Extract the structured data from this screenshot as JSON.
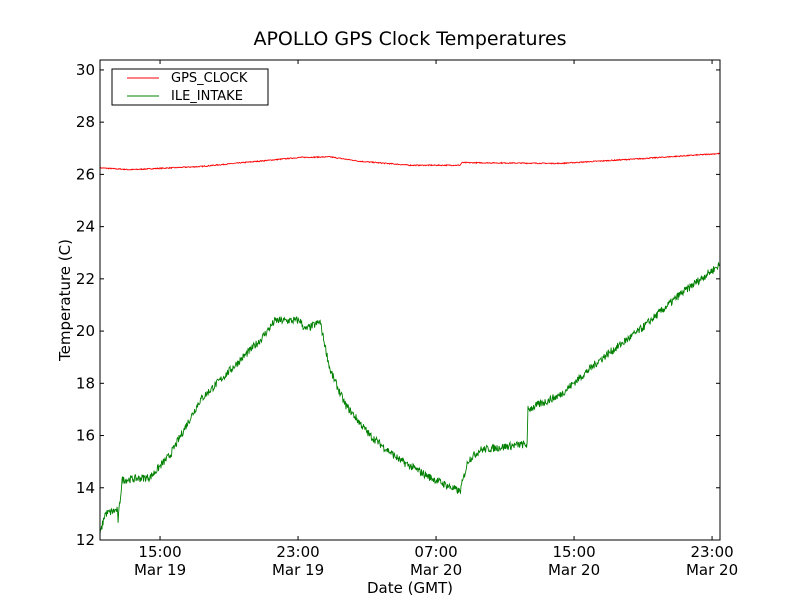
{
  "chart_data": {
    "type": "line",
    "title": "APOLLO GPS Clock Temperatures",
    "xlabel": "Date (GMT)",
    "ylabel": "Temperature (C)",
    "x_units": "hours since Mar 19 00:00 GMT",
    "xlim": [
      11.52,
      47.46
    ],
    "ylim": [
      12,
      30.38
    ],
    "grid": false,
    "legend_position": "top-left",
    "yticks": [
      12,
      14,
      16,
      18,
      20,
      22,
      24,
      26,
      28,
      30
    ],
    "xticks": [
      {
        "value": 15,
        "time": "15:00",
        "date": "Mar 19"
      },
      {
        "value": 23,
        "time": "23:00",
        "date": "Mar 19"
      },
      {
        "value": 31,
        "time": "07:00",
        "date": "Mar 20"
      },
      {
        "value": 39,
        "time": "15:00",
        "date": "Mar 20"
      },
      {
        "value": 47,
        "time": "23:00",
        "date": "Mar 20"
      }
    ],
    "series": [
      {
        "name": "GPS_CLOCK",
        "color": "#ff0000",
        "noise": 0.02,
        "x": [
          11.52,
          13.26,
          17.32,
          23.12,
          24.86,
          26.6,
          29.49,
          32.39,
          32.5,
          38.19,
          42.83,
          47.46
        ],
        "y": [
          26.25,
          26.18,
          26.3,
          26.65,
          26.67,
          26.5,
          26.35,
          26.35,
          26.45,
          26.42,
          26.6,
          26.8
        ]
      },
      {
        "name": "ILE_INTAKE",
        "color": "#008000",
        "noise": 0.15,
        "x": [
          11.52,
          11.81,
          12.51,
          12.57,
          12.8,
          14.42,
          15.58,
          17.32,
          19.06,
          20.8,
          21.67,
          23.12,
          23.41,
          24.28,
          24.86,
          25.72,
          27.17,
          28.91,
          30.65,
          32.39,
          32.86,
          33.55,
          35.87,
          36.28,
          36.33,
          38.19,
          40.51,
          42.83,
          45.14,
          47.46
        ],
        "y": [
          12.2,
          13.0,
          13.15,
          12.75,
          14.3,
          14.4,
          15.25,
          17.35,
          18.5,
          19.65,
          20.4,
          20.4,
          20.05,
          20.35,
          18.5,
          17.2,
          16.0,
          15.05,
          14.4,
          13.85,
          15.05,
          15.45,
          15.65,
          15.65,
          17.0,
          17.55,
          18.9,
          20.05,
          21.4,
          22.55
        ]
      }
    ]
  }
}
